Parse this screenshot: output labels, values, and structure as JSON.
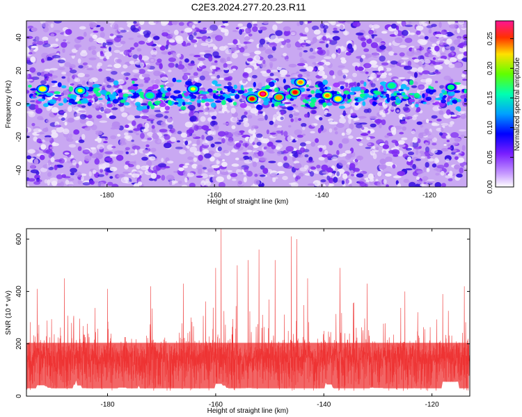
{
  "title": "C2E3.2024.277.20.23.R11",
  "chart_data": [
    {
      "type": "heatmap",
      "xlabel": "Height of straight line (km)",
      "ylabel": "Frequency (Hz)",
      "xlim": [
        -195,
        -113
      ],
      "ylim": [
        -50,
        50
      ],
      "xticks": [
        -180,
        -160,
        -140,
        -120
      ],
      "yticks": [
        -40,
        -20,
        0,
        20,
        40
      ],
      "colorbar": {
        "label": "Normalized spectral amplitude",
        "range": [
          0,
          0.28
        ],
        "ticks": [
          0.0,
          0.05,
          0.1,
          0.15,
          0.2,
          0.25
        ],
        "tick_labels": [
          "0.00",
          "0.05",
          "0.10",
          "0.15",
          "0.20",
          "0.25"
        ],
        "colormap": [
          "#ffffff",
          "#9b30ff",
          "#0000ff",
          "#00bfff",
          "#00ff80",
          "#ffff00",
          "#ff8000",
          "#ff0000",
          "#ff1493"
        ]
      },
      "signal_band": {
        "frequency_center": 5,
        "frequency_halfwidth": 8
      },
      "hotspots": [
        {
          "x": -192,
          "y": 9,
          "value": 0.18
        },
        {
          "x": -185,
          "y": 8,
          "value": 0.16
        },
        {
          "x": -172,
          "y": 5,
          "value": 0.15
        },
        {
          "x": -164,
          "y": 9,
          "value": 0.16
        },
        {
          "x": -153,
          "y": 3,
          "value": 0.25
        },
        {
          "x": -151,
          "y": 6,
          "value": 0.27
        },
        {
          "x": -148,
          "y": 4,
          "value": 0.22
        },
        {
          "x": -145,
          "y": 7,
          "value": 0.24
        },
        {
          "x": -144,
          "y": 13,
          "value": 0.2
        },
        {
          "x": -139,
          "y": 5,
          "value": 0.21
        },
        {
          "x": -137,
          "y": 3,
          "value": 0.18
        },
        {
          "x": -127,
          "y": 11,
          "value": 0.15
        },
        {
          "x": -116,
          "y": 10,
          "value": 0.14
        }
      ],
      "grid": false
    },
    {
      "type": "line",
      "color": "#ee3333",
      "xlabel": "Height of straight line (km)",
      "ylabel": "SNR (10 * v/v)",
      "xlim": [
        -195,
        -113
      ],
      "ylim": [
        0,
        640
      ],
      "xticks": [
        -180,
        -160,
        -140,
        -120
      ],
      "yticks": [
        0,
        200,
        400,
        600
      ],
      "baseline": {
        "mean": 150,
        "spread": 45
      },
      "peaks": [
        {
          "x": -193,
          "y": 410
        },
        {
          "x": -188,
          "y": 450
        },
        {
          "x": -180,
          "y": 410
        },
        {
          "x": -172,
          "y": 420
        },
        {
          "x": -166,
          "y": 430
        },
        {
          "x": -160,
          "y": 490
        },
        {
          "x": -159,
          "y": 640
        },
        {
          "x": -156,
          "y": 500
        },
        {
          "x": -154,
          "y": 520
        },
        {
          "x": -152,
          "y": 560
        },
        {
          "x": -149,
          "y": 520
        },
        {
          "x": -146,
          "y": 610
        },
        {
          "x": -145,
          "y": 600
        },
        {
          "x": -143,
          "y": 450
        },
        {
          "x": -137,
          "y": 490
        },
        {
          "x": -132,
          "y": 430
        },
        {
          "x": -125,
          "y": 400
        },
        {
          "x": -118,
          "y": 390
        },
        {
          "x": -114,
          "y": 420
        }
      ],
      "grid": false
    }
  ]
}
